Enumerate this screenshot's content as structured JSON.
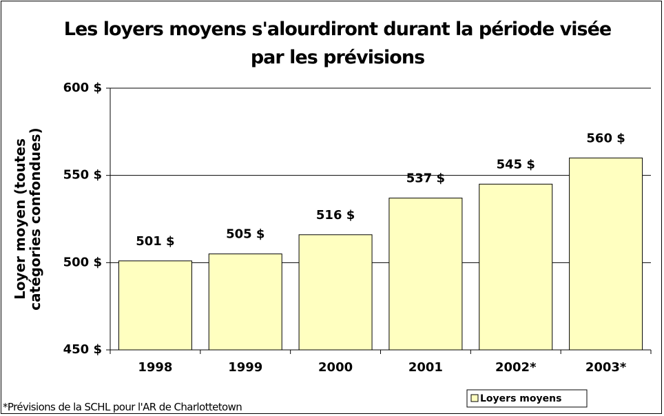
{
  "chart_data": {
    "type": "bar",
    "title": "Les loyers moyens s'alourdiront durant la période visée par les prévisions",
    "y_label": "Loyer moyen (toutes catégories confondues)",
    "categories": [
      "1998",
      "1999",
      "2000",
      "2001",
      "2002*",
      "2003*"
    ],
    "series": [
      {
        "name": "Loyers moyens",
        "color": "#ffffc0",
        "values": [
          501,
          505,
          516,
          537,
          545,
          560
        ],
        "value_labels": [
          "501 $",
          "505 $",
          "516 $",
          "537 $",
          "545 $",
          "560 $"
        ]
      }
    ],
    "ylim": [
      450,
      600
    ],
    "yticks": [
      {
        "value": 450,
        "label": "450 $"
      },
      {
        "value": 500,
        "label": "500 $"
      },
      {
        "value": 550,
        "label": "550 $"
      },
      {
        "value": 600,
        "label": "600 $"
      }
    ],
    "grid": true,
    "legend_position": "bottom-right",
    "footnote": "*Prévisions de la SCHL pour l'AR de Charlottetown"
  }
}
